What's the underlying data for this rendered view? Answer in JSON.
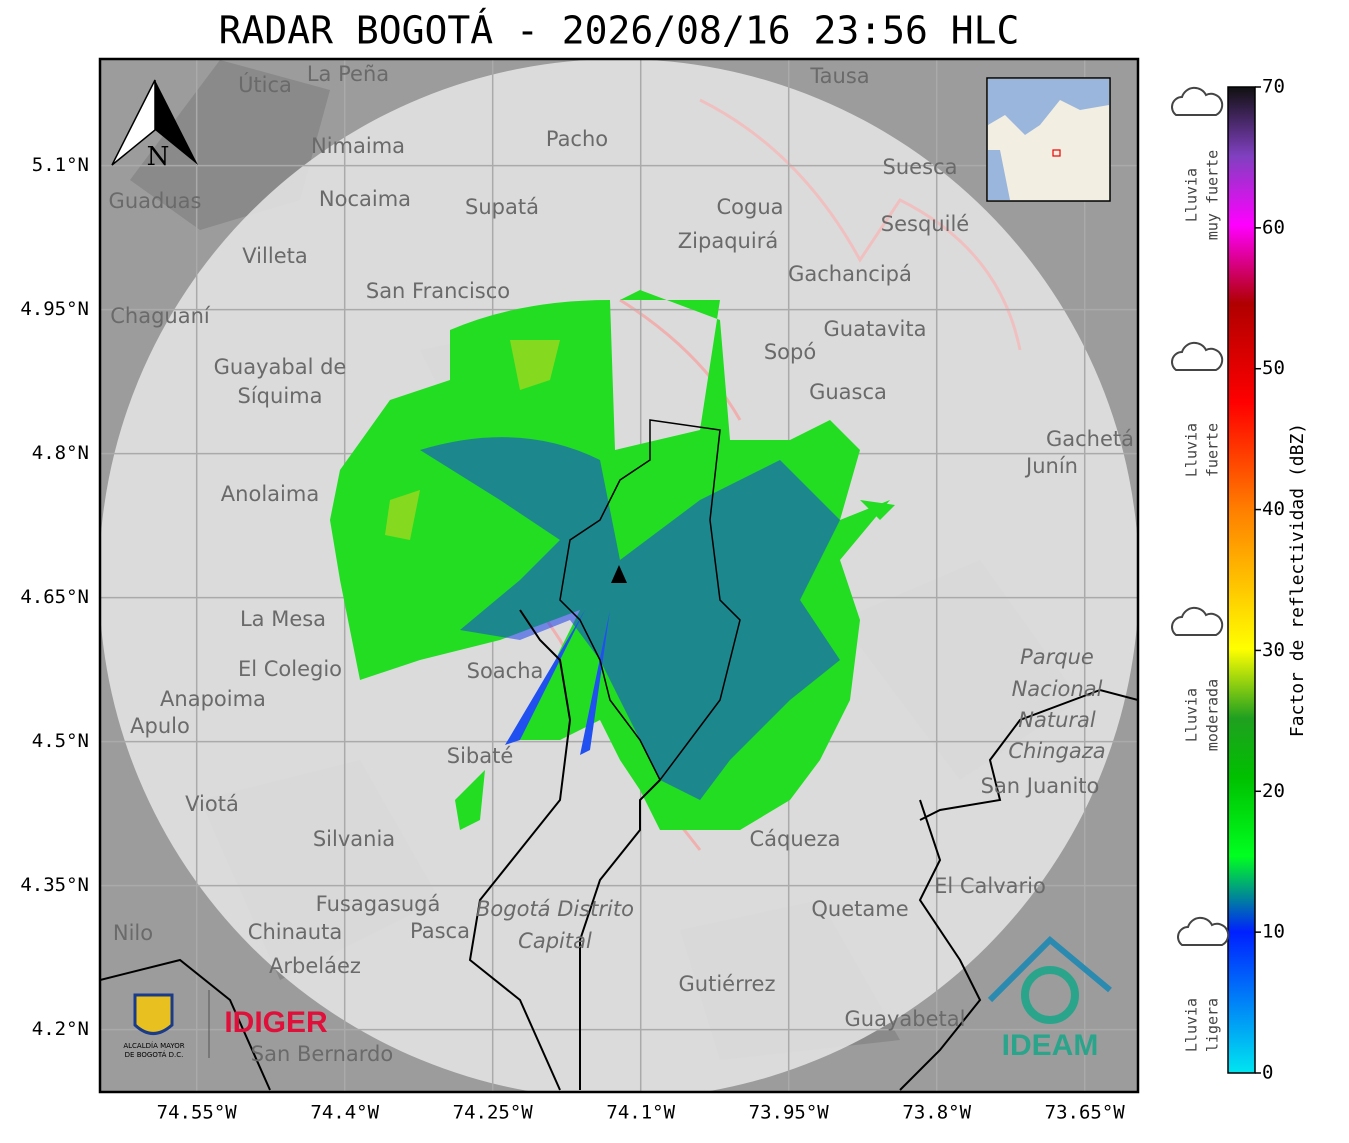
{
  "title": "RADAR BOGOTÁ - 2026/08/16 23:56 HLC",
  "map": {
    "xlim": [
      -74.648,
      -73.596
    ],
    "ylim": [
      4.135,
      5.211
    ],
    "xticks": [
      {
        "value": -74.55,
        "label": "74.55°W"
      },
      {
        "value": -74.4,
        "label": "74.4°W"
      },
      {
        "value": -74.25,
        "label": "74.25°W"
      },
      {
        "value": -74.1,
        "label": "74.1°W"
      },
      {
        "value": -73.95,
        "label": "73.95°W"
      },
      {
        "value": -73.8,
        "label": "73.8°W"
      },
      {
        "value": -73.65,
        "label": "73.65°W"
      }
    ],
    "yticks": [
      {
        "value": 5.1,
        "label": "5.1°N"
      },
      {
        "value": 4.95,
        "label": "4.95°N"
      },
      {
        "value": 4.8,
        "label": "4.8°N"
      },
      {
        "value": 4.65,
        "label": "4.65°N"
      },
      {
        "value": 4.5,
        "label": "4.5°N"
      },
      {
        "value": 4.35,
        "label": "4.35°N"
      },
      {
        "value": 4.2,
        "label": "4.2°N"
      }
    ],
    "north": "N",
    "places": [
      "La Peña",
      "Útica",
      "Tausa",
      "Pacho",
      "Nimaima",
      "Suesca",
      "Guaduas",
      "Nocaima",
      "Supatá",
      "Cogua",
      "Zipaquirá",
      "Sesquilé",
      "Villeta",
      "Gachancipá",
      "San Francisco",
      "Chaguaní",
      "Guatavita",
      "Sopó",
      "Guayabal de",
      "Síquima",
      "Guasca",
      "Gachetá",
      "Junín",
      "Anolaima",
      "La Mesa",
      "El Colegio",
      "Soacha",
      "Anapoima",
      "Apulo",
      "Sibaté",
      "Parque",
      "Nacional",
      "Natural",
      "Chingaza",
      "San Juanito",
      "Viotá",
      "Silvania",
      "Cáqueza",
      "El Calvario",
      "Fusagasugá",
      "Bogotá Distrito",
      "Capital",
      "Quetame",
      "Chinauta",
      "Pasca",
      "Nilo",
      "Arbeláez",
      "Gutiérrez",
      "Guayabetal",
      "San Bernardo"
    ]
  },
  "logos": {
    "alcaldia": [
      "ALCALDÍA MAYOR",
      "DE BOGOTÁ D.C."
    ],
    "idiger": "IDIGER",
    "ideam": "IDEAM"
  },
  "colorbar": {
    "label": "Factor de reflectividad (dBZ)",
    "lim": [
      0,
      70
    ],
    "ticks": [
      0,
      10,
      20,
      30,
      40,
      50,
      60,
      70
    ]
  },
  "rain_levels": [
    [
      "Lluvia",
      "muy fuerte"
    ],
    [
      "Lluvia",
      "fuerte"
    ],
    [
      "Lluvia",
      "moderada"
    ],
    [
      "Lluvia",
      "ligera"
    ]
  ]
}
